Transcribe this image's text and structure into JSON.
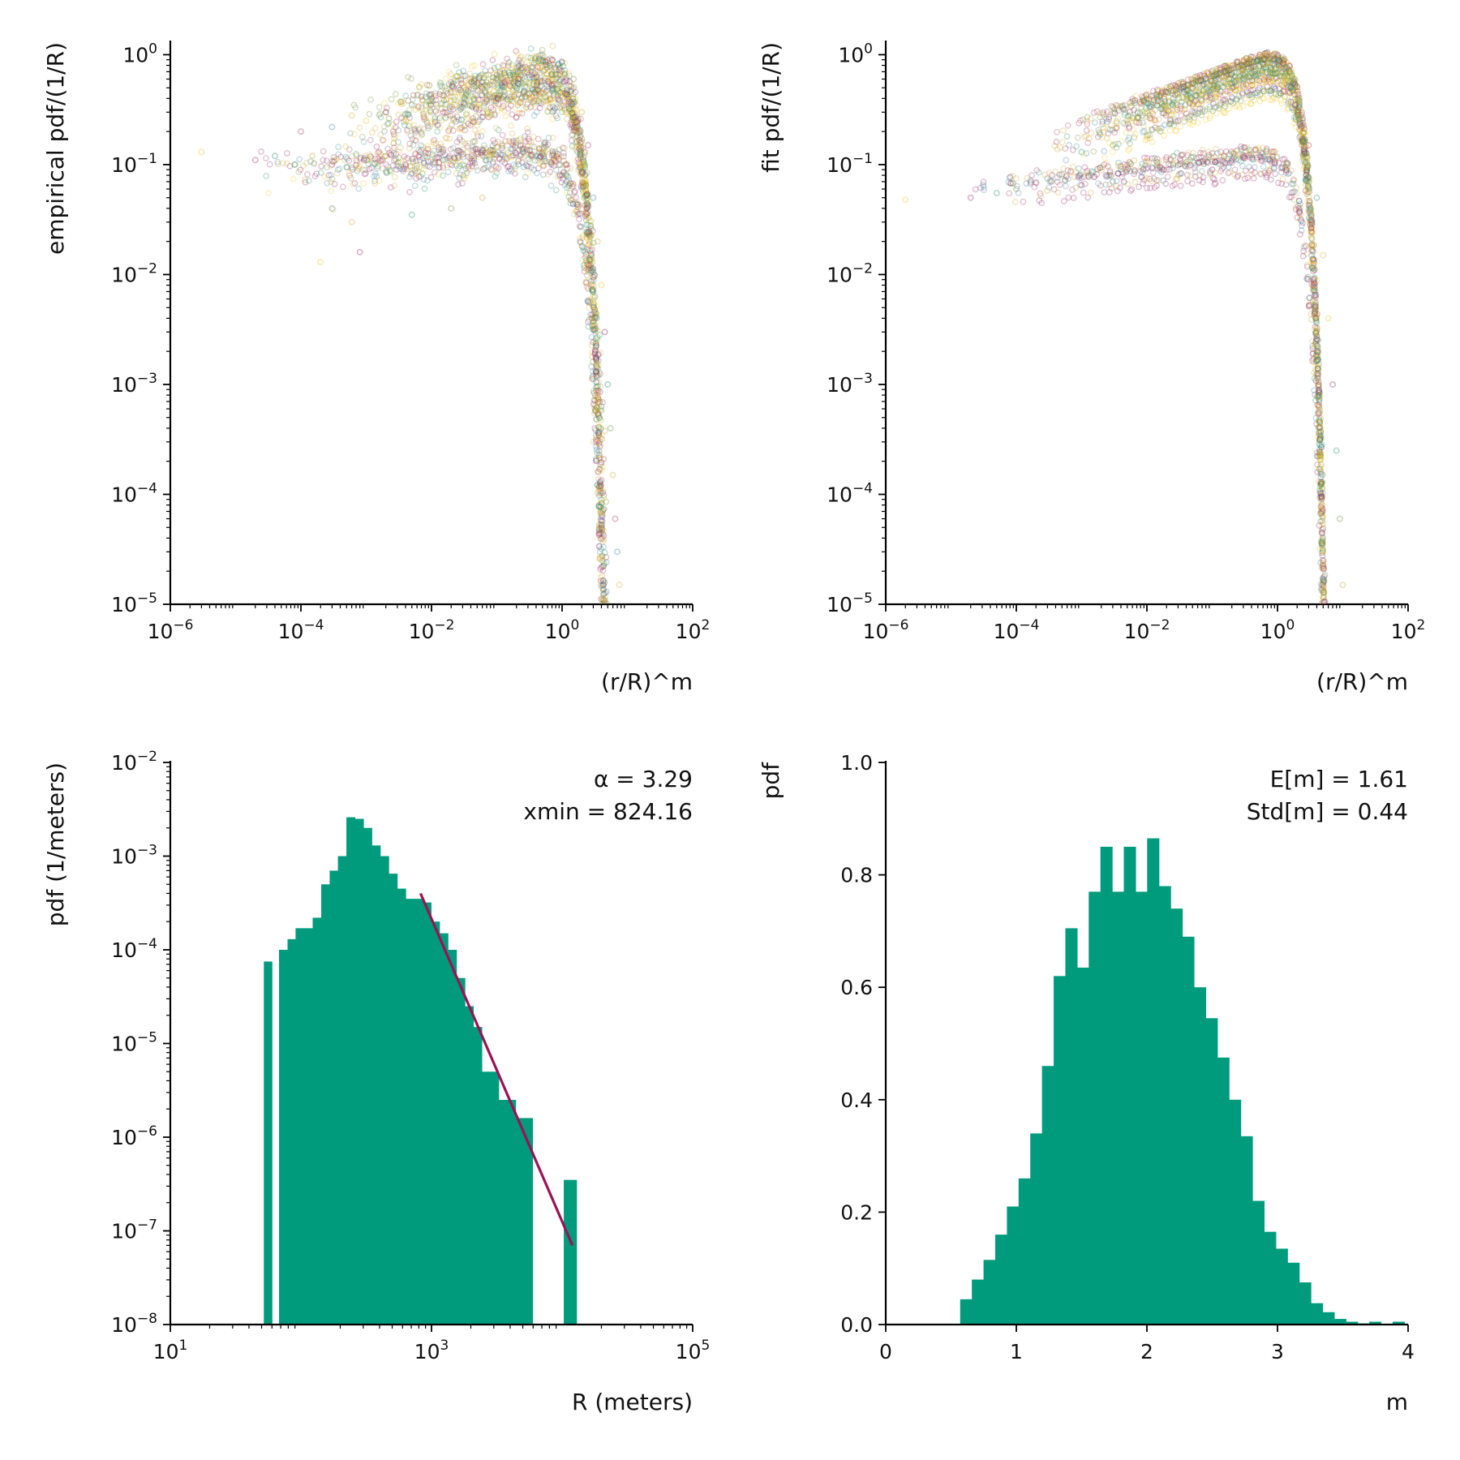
{
  "chart_data": [
    {
      "id": "empirical",
      "type": "scatter",
      "xscale": "log",
      "yscale": "log",
      "xlim": [
        1e-06,
        100
      ],
      "ylim": [
        1e-05,
        1.3
      ],
      "xlabel": "(r/R)^m",
      "ylabel": "empirical pdf/(1/R)",
      "xticks": [
        {
          "value": 1e-06,
          "base": "10",
          "exp": "−6"
        },
        {
          "value": 0.0001,
          "base": "10",
          "exp": "−4"
        },
        {
          "value": 0.01,
          "base": "10",
          "exp": "−2"
        },
        {
          "value": 1,
          "base": "10",
          "exp": "0"
        },
        {
          "value": 100,
          "base": "10",
          "exp": "2"
        }
      ],
      "yticks": [
        {
          "value": 1e-05,
          "base": "10",
          "exp": "−5"
        },
        {
          "value": 0.0001,
          "base": "10",
          "exp": "−4"
        },
        {
          "value": 0.001,
          "base": "10",
          "exp": "−3"
        },
        {
          "value": 0.01,
          "base": "10",
          "exp": "−2"
        },
        {
          "value": 0.1,
          "base": "10",
          "exp": "−1"
        },
        {
          "value": 1,
          "base": "10",
          "exp": "0"
        }
      ],
      "point_style": "hollow circles, low alpha, many overlapping series",
      "series_colors": [
        "#f0c419",
        "#8e1a5e",
        "#1a8a6e",
        "#6c8c2a",
        "#c8a020",
        "#a0305a",
        "#3a7a9a",
        "#d9a82a"
      ],
      "points": [
        [
          3e-06,
          0.13
        ],
        [
          2e-05,
          0.11
        ],
        [
          4e-05,
          0.12
        ],
        [
          8e-05,
          0.1
        ],
        [
          0.00015,
          0.12
        ],
        [
          0.0003,
          0.1
        ],
        [
          0.0005,
          0.095
        ],
        [
          0.001,
          0.11
        ],
        [
          0.002,
          0.12
        ],
        [
          0.004,
          0.1
        ],
        [
          0.008,
          0.12
        ],
        [
          0.015,
          0.11
        ],
        [
          0.03,
          0.1
        ],
        [
          0.05,
          0.13
        ],
        [
          0.0003,
          0.04
        ],
        [
          0.0006,
          0.03
        ],
        [
          0.0002,
          0.013
        ],
        [
          0.0008,
          0.016
        ],
        [
          0.005,
          0.035
        ],
        [
          0.02,
          0.04
        ],
        [
          0.06,
          0.05
        ],
        [
          0.0001,
          0.2
        ],
        [
          0.0003,
          0.22
        ],
        [
          0.0006,
          0.28
        ],
        [
          0.001,
          0.25
        ],
        [
          0.002,
          0.3
        ],
        [
          0.005,
          0.35
        ],
        [
          0.01,
          0.4
        ],
        [
          0.02,
          0.45
        ],
        [
          0.05,
          0.55
        ],
        [
          0.1,
          0.65
        ],
        [
          0.2,
          0.75
        ],
        [
          0.4,
          0.85
        ],
        [
          0.7,
          0.9
        ],
        [
          1.0,
          0.85
        ],
        [
          1.5,
          0.6
        ],
        [
          2.0,
          0.3
        ],
        [
          2.5,
          0.15
        ],
        [
          3.0,
          0.05
        ],
        [
          3.5,
          0.02
        ],
        [
          4.0,
          0.008
        ],
        [
          4.5,
          0.003
        ],
        [
          5.0,
          0.001
        ],
        [
          5.5,
          0.0004
        ],
        [
          6.0,
          0.00015
        ],
        [
          6.5,
          6e-05
        ],
        [
          7.0,
          3e-05
        ],
        [
          7.5,
          1.5e-05
        ]
      ]
    },
    {
      "id": "fit",
      "type": "scatter",
      "xscale": "log",
      "yscale": "log",
      "xlim": [
        1e-06,
        100
      ],
      "ylim": [
        1e-05,
        1.3
      ],
      "xlabel": "(r/R)^m",
      "ylabel": "fit pdf/(1/R)",
      "xticks": [
        {
          "value": 1e-06,
          "base": "10",
          "exp": "−6"
        },
        {
          "value": 0.0001,
          "base": "10",
          "exp": "−4"
        },
        {
          "value": 0.01,
          "base": "10",
          "exp": "−2"
        },
        {
          "value": 1,
          "base": "10",
          "exp": "0"
        },
        {
          "value": 100,
          "base": "10",
          "exp": "2"
        }
      ],
      "yticks": [
        {
          "value": 1e-05,
          "base": "10",
          "exp": "−5"
        },
        {
          "value": 0.0001,
          "base": "10",
          "exp": "−4"
        },
        {
          "value": 0.001,
          "base": "10",
          "exp": "−3"
        },
        {
          "value": 0.01,
          "base": "10",
          "exp": "−2"
        },
        {
          "value": 0.1,
          "base": "10",
          "exp": "−1"
        },
        {
          "value": 1,
          "base": "10",
          "exp": "0"
        }
      ],
      "point_style": "hollow circles, low alpha, many overlapping series",
      "series_colors": [
        "#f0c419",
        "#8e1a5e",
        "#1a8a6e",
        "#6c8c2a",
        "#c8a020",
        "#a0305a",
        "#3a7a9a",
        "#d9a82a"
      ],
      "points": [
        [
          2e-06,
          0.048
        ],
        [
          2e-05,
          0.05
        ],
        [
          5e-05,
          0.055
        ],
        [
          0.0001,
          0.06
        ],
        [
          0.0003,
          0.058
        ],
        [
          0.001,
          0.065
        ],
        [
          0.003,
          0.07
        ],
        [
          0.01,
          0.075
        ],
        [
          0.03,
          0.08
        ],
        [
          0.1,
          0.09
        ],
        [
          0.001,
          0.13
        ],
        [
          0.003,
          0.15
        ],
        [
          0.01,
          0.18
        ],
        [
          0.03,
          0.25
        ],
        [
          0.1,
          0.4
        ],
        [
          0.2,
          0.6
        ],
        [
          0.4,
          0.9
        ],
        [
          0.7,
          1.05
        ],
        [
          1.0,
          0.95
        ],
        [
          1.5,
          0.7
        ],
        [
          2.0,
          0.4
        ],
        [
          3.0,
          0.15
        ],
        [
          4.0,
          0.05
        ],
        [
          5.0,
          0.015
        ],
        [
          6.0,
          0.004
        ],
        [
          7.0,
          0.001
        ],
        [
          8.0,
          0.00025
        ],
        [
          9.0,
          6e-05
        ],
        [
          10.0,
          1.5e-05
        ]
      ]
    },
    {
      "id": "R-hist",
      "type": "bar",
      "xscale": "log",
      "yscale": "log",
      "xlim": [
        10,
        100000
      ],
      "ylim": [
        1e-08,
        0.01
      ],
      "xlabel": "R (meters)",
      "ylabel": "pdf (1/meters)",
      "xticks": [
        {
          "value": 10,
          "base": "10",
          "exp": "1"
        },
        {
          "value": 1000,
          "base": "10",
          "exp": "3"
        },
        {
          "value": 100000,
          "base": "10",
          "exp": "5"
        }
      ],
      "yticks": [
        {
          "value": 1e-08,
          "base": "10",
          "exp": "−8"
        },
        {
          "value": 1e-07,
          "base": "10",
          "exp": "−7"
        },
        {
          "value": 1e-06,
          "base": "10",
          "exp": "−6"
        },
        {
          "value": 1e-05,
          "base": "10",
          "exp": "−5"
        },
        {
          "value": 0.0001,
          "base": "10",
          "exp": "−4"
        },
        {
          "value": 0.001,
          "base": "10",
          "exp": "−3"
        },
        {
          "value": 0.01,
          "base": "10",
          "exp": "−2"
        }
      ],
      "bar_color": "#009b7d",
      "bins": [
        {
          "x0": 52,
          "x1": 60,
          "y": 7.5e-05
        },
        {
          "x0": 68,
          "x1": 79,
          "y": 0.0001
        },
        {
          "x0": 79,
          "x1": 91,
          "y": 0.00013
        },
        {
          "x0": 91,
          "x1": 106,
          "y": 0.00017
        },
        {
          "x0": 106,
          "x1": 123,
          "y": 0.00017
        },
        {
          "x0": 123,
          "x1": 143,
          "y": 0.00022
        },
        {
          "x0": 143,
          "x1": 166,
          "y": 0.0005
        },
        {
          "x0": 166,
          "x1": 192,
          "y": 0.0007
        },
        {
          "x0": 192,
          "x1": 223,
          "y": 0.001
        },
        {
          "x0": 223,
          "x1": 259,
          "y": 0.0026
        },
        {
          "x0": 259,
          "x1": 301,
          "y": 0.0025
        },
        {
          "x0": 301,
          "x1": 349,
          "y": 0.002
        },
        {
          "x0": 349,
          "x1": 405,
          "y": 0.0013
        },
        {
          "x0": 405,
          "x1": 470,
          "y": 0.001
        },
        {
          "x0": 470,
          "x1": 546,
          "y": 0.00065
        },
        {
          "x0": 546,
          "x1": 634,
          "y": 0.00045
        },
        {
          "x0": 634,
          "x1": 736,
          "y": 0.00035
        },
        {
          "x0": 736,
          "x1": 854,
          "y": 0.00035
        },
        {
          "x0": 854,
          "x1": 992,
          "y": 0.00032
        },
        {
          "x0": 992,
          "x1": 1151,
          "y": 0.0002
        },
        {
          "x0": 1151,
          "x1": 1336,
          "y": 0.00015
        },
        {
          "x0": 1336,
          "x1": 1551,
          "y": 0.0001
        },
        {
          "x0": 1551,
          "x1": 1801,
          "y": 5e-05
        },
        {
          "x0": 1801,
          "x1": 2090,
          "y": 2.5e-05
        },
        {
          "x0": 2090,
          "x1": 2427,
          "y": 1.5e-05
        },
        {
          "x0": 2427,
          "x1": 2817,
          "y": 5e-06
        },
        {
          "x0": 2817,
          "x1": 3270,
          "y": 5e-06
        },
        {
          "x0": 3270,
          "x1": 3796,
          "y": 2.5e-06
        },
        {
          "x0": 3796,
          "x1": 4407,
          "y": 2.5e-06
        },
        {
          "x0": 4407,
          "x1": 5116,
          "y": 1.6e-06
        },
        {
          "x0": 5116,
          "x1": 5940,
          "y": 1.6e-06
        },
        {
          "x0": 10300,
          "x1": 12900,
          "y": 3.5e-07
        }
      ],
      "fit_line": {
        "color": "#9b1254",
        "points": [
          [
            824.16,
            0.0004
          ],
          [
            12000,
            7e-08
          ]
        ]
      },
      "annotations": [
        "α = 3.29",
        "xmin = 824.16"
      ]
    },
    {
      "id": "m-hist",
      "type": "bar",
      "xlim": [
        0,
        4
      ],
      "ylim": [
        0,
        1.0
      ],
      "xlabel": "m",
      "ylabel": "pdf",
      "xticks": [
        {
          "value": 0,
          "label": "0"
        },
        {
          "value": 1,
          "label": "1"
        },
        {
          "value": 2,
          "label": "2"
        },
        {
          "value": 3,
          "label": "3"
        },
        {
          "value": 4,
          "label": "4"
        }
      ],
      "yticks": [
        {
          "value": 0.0,
          "label": "0.0"
        },
        {
          "value": 0.2,
          "label": "0.2"
        },
        {
          "value": 0.4,
          "label": "0.4"
        },
        {
          "value": 0.6,
          "label": "0.6"
        },
        {
          "value": 0.8,
          "label": "0.8"
        },
        {
          "value": 1.0,
          "label": "1.0"
        }
      ],
      "bar_color": "#009b7d",
      "bin_start": 0.57,
      "bin_width": 0.0895,
      "values": [
        0.045,
        0.08,
        0.115,
        0.16,
        0.21,
        0.26,
        0.34,
        0.46,
        0.62,
        0.705,
        0.635,
        0.77,
        0.85,
        0.77,
        0.85,
        0.77,
        0.865,
        0.78,
        0.74,
        0.69,
        0.6,
        0.545,
        0.475,
        0.4,
        0.335,
        0.22,
        0.165,
        0.135,
        0.11,
        0.075,
        0.038,
        0.022,
        0.01,
        0.005,
        0.002,
        0.005,
        0.0,
        0.005
      ],
      "annotations": [
        "E[m] = 1.61",
        "Std[m] = 0.44"
      ]
    }
  ]
}
